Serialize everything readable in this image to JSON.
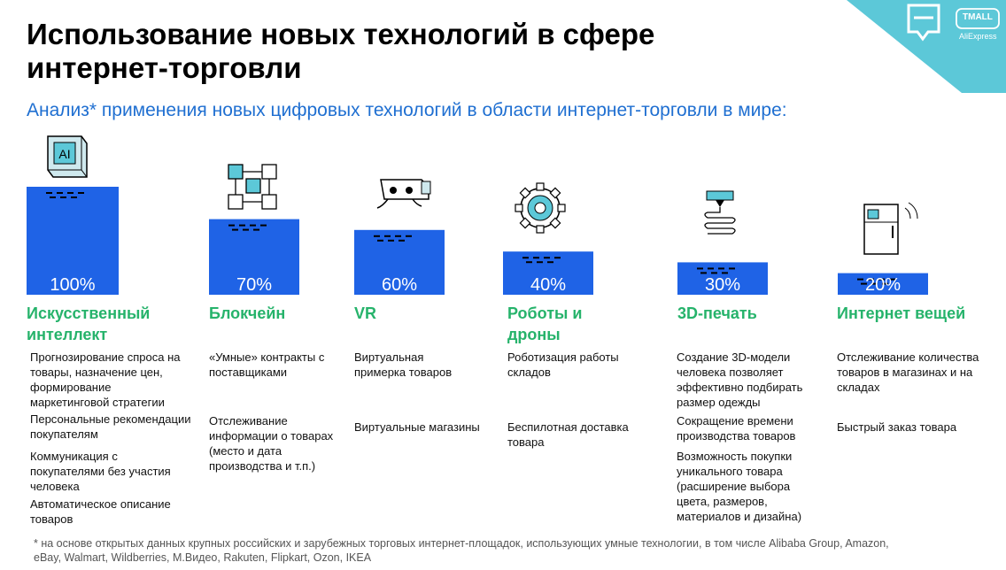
{
  "title": "Использование новых технологий в сфере интернет-торговли",
  "subtitle": "Анализ* применения новых цифровых технологий в области интернет-торговли в мире:",
  "logo": {
    "brand": "TMALL",
    "sub": "AliExpress"
  },
  "colors": {
    "bar": "#1f63e6",
    "accent": "#26b36b",
    "subtitle": "#1f6fd1",
    "corner": "#5cc8d8"
  },
  "chart_data": {
    "type": "bar",
    "categories": [
      "Искусственный интеллект",
      "Блокчейн",
      "VR",
      "Роботы и дроны",
      "3D-печать",
      "Интернет вещей"
    ],
    "values": [
      100,
      70,
      60,
      40,
      30,
      20
    ],
    "labels": [
      "100%",
      "70%",
      "60%",
      "40%",
      "30%",
      "20%"
    ],
    "ylim": [
      0,
      100
    ]
  },
  "columns": [
    {
      "category": "Искусственный интеллект",
      "icon": "ai-chip-icon",
      "items": [
        "Прогнозирование спроса на товары, назначение цен, формирование маркетинговой стратегии",
        "Персональные рекомендации покупателям",
        "Коммуникация с покупателями без участия человека",
        "Автоматическое описание товаров"
      ]
    },
    {
      "category": "Блокчейн",
      "icon": "blockchain-cubes-icon",
      "items": [
        "«Умные» контракты с поставщиками",
        "Отслеживание информации о товарах (место и дата производства и т.п.)"
      ]
    },
    {
      "category": "VR",
      "icon": "vr-headset-icon",
      "items": [
        "Виртуальная примерка товаров",
        "Виртуальные магазины"
      ]
    },
    {
      "category": "Роботы и дроны",
      "icon": "gear-icon",
      "items": [
        "Роботизация работы складов",
        "Беспилотная доставка товара"
      ]
    },
    {
      "category": "3D-печать",
      "icon": "3d-printer-icon",
      "items": [
        "Создание 3D-модели человека позволяет эффективно подбирать размер одежды",
        "Сокращение времени производства товаров",
        "Возможность покупки уникального товара (расширение выбора цвета, размеров, материалов и дизайна)"
      ]
    },
    {
      "category": "Интернет вещей",
      "icon": "smart-fridge-icon",
      "items": [
        "Отслеживание количества товаров в магазинах и на складах",
        "Быстрый заказ товара"
      ]
    }
  ],
  "footnote": "* на основе открытых данных крупных российских и зарубежных торговых интернет-площадок, использующих умные технологии, в том числе Alibaba Group, Amazon, eBay, Walmart, Wildberries, М.Видео, Rakuten, Flipkart, Ozon, IKEA"
}
